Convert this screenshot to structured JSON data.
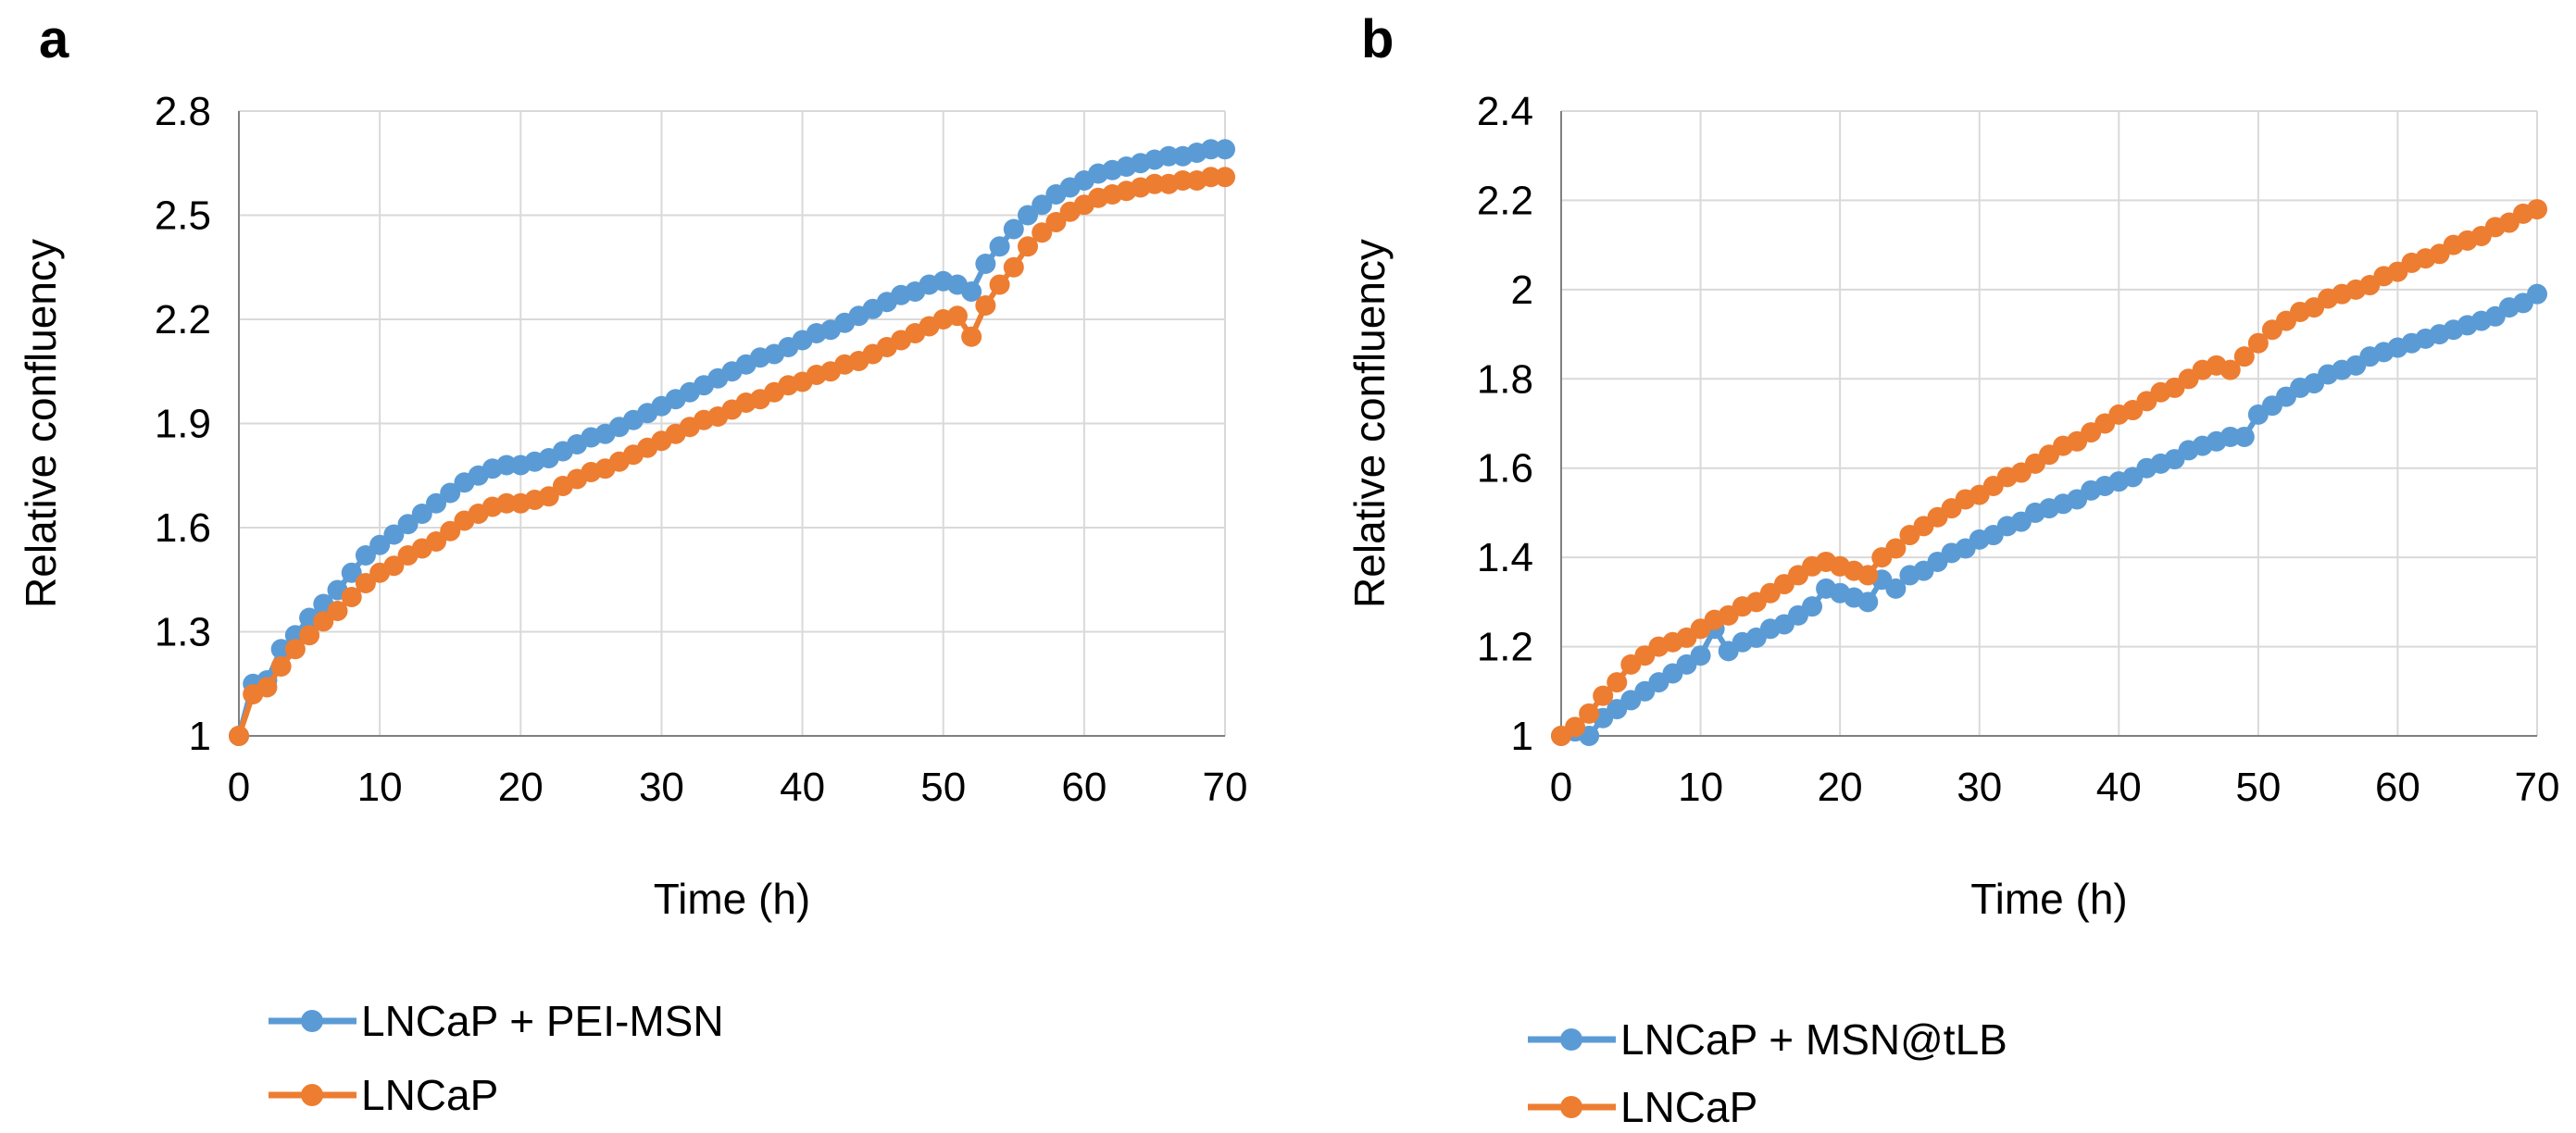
{
  "chart_data": [
    {
      "panel_label": "a",
      "type": "line",
      "xlabel": "Time (h)",
      "ylabel": "Relative confluency",
      "xlim": [
        0,
        70
      ],
      "ylim": [
        1,
        2.8
      ],
      "xticks": [
        "0",
        "10",
        "20",
        "30",
        "40",
        "50",
        "60",
        "70"
      ],
      "yticks": [
        "1",
        "1.3",
        "1.6",
        "1.9",
        "2.2",
        "2.5",
        "2.8"
      ],
      "grid": true,
      "legend_position": "bottom-left",
      "series": [
        {
          "name": "LNCaP + PEI-MSN",
          "color": "#5B9BD5",
          "x": [
            0,
            1,
            2,
            3,
            4,
            5,
            6,
            7,
            8,
            9,
            10,
            11,
            12,
            13,
            14,
            15,
            16,
            17,
            18,
            19,
            20,
            21,
            22,
            23,
            24,
            25,
            26,
            27,
            28,
            29,
            30,
            31,
            32,
            33,
            34,
            35,
            36,
            37,
            38,
            39,
            40,
            41,
            42,
            43,
            44,
            45,
            46,
            47,
            48,
            49,
            50,
            51,
            52,
            53,
            54,
            55,
            56,
            57,
            58,
            59,
            60,
            61,
            62,
            63,
            64,
            65,
            66,
            67,
            68,
            69,
            70
          ],
          "y": [
            1.0,
            1.15,
            1.16,
            1.25,
            1.29,
            1.34,
            1.38,
            1.42,
            1.47,
            1.52,
            1.55,
            1.58,
            1.61,
            1.64,
            1.67,
            1.7,
            1.73,
            1.75,
            1.77,
            1.78,
            1.78,
            1.79,
            1.8,
            1.82,
            1.84,
            1.86,
            1.87,
            1.89,
            1.91,
            1.93,
            1.95,
            1.97,
            1.99,
            2.01,
            2.03,
            2.05,
            2.07,
            2.09,
            2.1,
            2.12,
            2.14,
            2.16,
            2.17,
            2.19,
            2.21,
            2.23,
            2.25,
            2.27,
            2.28,
            2.3,
            2.31,
            2.3,
            2.28,
            2.36,
            2.41,
            2.46,
            2.5,
            2.53,
            2.56,
            2.58,
            2.6,
            2.62,
            2.63,
            2.64,
            2.65,
            2.66,
            2.67,
            2.67,
            2.68,
            2.69,
            2.69
          ]
        },
        {
          "name": "LNCaP",
          "color": "#ED7D31",
          "x": [
            0,
            1,
            2,
            3,
            4,
            5,
            6,
            7,
            8,
            9,
            10,
            11,
            12,
            13,
            14,
            15,
            16,
            17,
            18,
            19,
            20,
            21,
            22,
            23,
            24,
            25,
            26,
            27,
            28,
            29,
            30,
            31,
            32,
            33,
            34,
            35,
            36,
            37,
            38,
            39,
            40,
            41,
            42,
            43,
            44,
            45,
            46,
            47,
            48,
            49,
            50,
            51,
            52,
            53,
            54,
            55,
            56,
            57,
            58,
            59,
            60,
            61,
            62,
            63,
            64,
            65,
            66,
            67,
            68,
            69,
            70
          ],
          "y": [
            1.0,
            1.12,
            1.14,
            1.2,
            1.25,
            1.29,
            1.33,
            1.36,
            1.4,
            1.44,
            1.47,
            1.49,
            1.52,
            1.54,
            1.56,
            1.59,
            1.62,
            1.64,
            1.66,
            1.67,
            1.67,
            1.68,
            1.69,
            1.72,
            1.74,
            1.76,
            1.77,
            1.79,
            1.81,
            1.83,
            1.85,
            1.87,
            1.89,
            1.91,
            1.92,
            1.94,
            1.96,
            1.97,
            1.99,
            2.01,
            2.02,
            2.04,
            2.05,
            2.07,
            2.08,
            2.1,
            2.12,
            2.14,
            2.16,
            2.18,
            2.2,
            2.21,
            2.15,
            2.24,
            2.3,
            2.35,
            2.41,
            2.45,
            2.48,
            2.51,
            2.53,
            2.55,
            2.56,
            2.57,
            2.58,
            2.59,
            2.59,
            2.6,
            2.6,
            2.61,
            2.61
          ]
        }
      ]
    },
    {
      "panel_label": "b",
      "type": "line",
      "xlabel": "Time (h)",
      "ylabel": "Relative confluency",
      "xlim": [
        0,
        70
      ],
      "ylim": [
        1,
        2.4
      ],
      "xticks": [
        "0",
        "10",
        "20",
        "30",
        "40",
        "50",
        "60",
        "70"
      ],
      "yticks": [
        "1",
        "1.2",
        "1.4",
        "1.6",
        "1.8",
        "2",
        "2.2",
        "2.4"
      ],
      "grid": true,
      "legend_position": "bottom-left",
      "series": [
        {
          "name": "LNCaP + MSN@tLB",
          "color": "#5B9BD5",
          "x": [
            0,
            1,
            2,
            3,
            4,
            5,
            6,
            7,
            8,
            9,
            10,
            11,
            12,
            13,
            14,
            15,
            16,
            17,
            18,
            19,
            20,
            21,
            22,
            23,
            24,
            25,
            26,
            27,
            28,
            29,
            30,
            31,
            32,
            33,
            34,
            35,
            36,
            37,
            38,
            39,
            40,
            41,
            42,
            43,
            44,
            45,
            46,
            47,
            48,
            49,
            50,
            51,
            52,
            53,
            54,
            55,
            56,
            57,
            58,
            59,
            60,
            61,
            62,
            63,
            64,
            65,
            66,
            67,
            68,
            69,
            70
          ],
          "y": [
            1.0,
            1.01,
            1.0,
            1.04,
            1.06,
            1.08,
            1.1,
            1.12,
            1.14,
            1.16,
            1.18,
            1.24,
            1.19,
            1.21,
            1.22,
            1.24,
            1.25,
            1.27,
            1.29,
            1.33,
            1.32,
            1.31,
            1.3,
            1.35,
            1.33,
            1.36,
            1.37,
            1.39,
            1.41,
            1.42,
            1.44,
            1.45,
            1.47,
            1.48,
            1.5,
            1.51,
            1.52,
            1.53,
            1.55,
            1.56,
            1.57,
            1.58,
            1.6,
            1.61,
            1.62,
            1.64,
            1.65,
            1.66,
            1.67,
            1.67,
            1.72,
            1.74,
            1.76,
            1.78,
            1.79,
            1.81,
            1.82,
            1.83,
            1.85,
            1.86,
            1.87,
            1.88,
            1.89,
            1.9,
            1.91,
            1.92,
            1.93,
            1.94,
            1.96,
            1.97,
            1.99
          ]
        },
        {
          "name": "LNCaP",
          "color": "#ED7D31",
          "x": [
            0,
            1,
            2,
            3,
            4,
            5,
            6,
            7,
            8,
            9,
            10,
            11,
            12,
            13,
            14,
            15,
            16,
            17,
            18,
            19,
            20,
            21,
            22,
            23,
            24,
            25,
            26,
            27,
            28,
            29,
            30,
            31,
            32,
            33,
            34,
            35,
            36,
            37,
            38,
            39,
            40,
            41,
            42,
            43,
            44,
            45,
            46,
            47,
            48,
            49,
            50,
            51,
            52,
            53,
            54,
            55,
            56,
            57,
            58,
            59,
            60,
            61,
            62,
            63,
            64,
            65,
            66,
            67,
            68,
            69,
            70
          ],
          "y": [
            1.0,
            1.02,
            1.05,
            1.09,
            1.12,
            1.16,
            1.18,
            1.2,
            1.21,
            1.22,
            1.24,
            1.26,
            1.27,
            1.29,
            1.3,
            1.32,
            1.34,
            1.36,
            1.38,
            1.39,
            1.38,
            1.37,
            1.36,
            1.4,
            1.42,
            1.45,
            1.47,
            1.49,
            1.51,
            1.53,
            1.54,
            1.56,
            1.58,
            1.59,
            1.61,
            1.63,
            1.65,
            1.66,
            1.68,
            1.7,
            1.72,
            1.73,
            1.75,
            1.77,
            1.78,
            1.8,
            1.82,
            1.83,
            1.82,
            1.85,
            1.88,
            1.91,
            1.93,
            1.95,
            1.96,
            1.98,
            1.99,
            2.0,
            2.01,
            2.03,
            2.04,
            2.06,
            2.07,
            2.08,
            2.1,
            2.11,
            2.12,
            2.14,
            2.15,
            2.17,
            2.18
          ]
        }
      ]
    }
  ]
}
